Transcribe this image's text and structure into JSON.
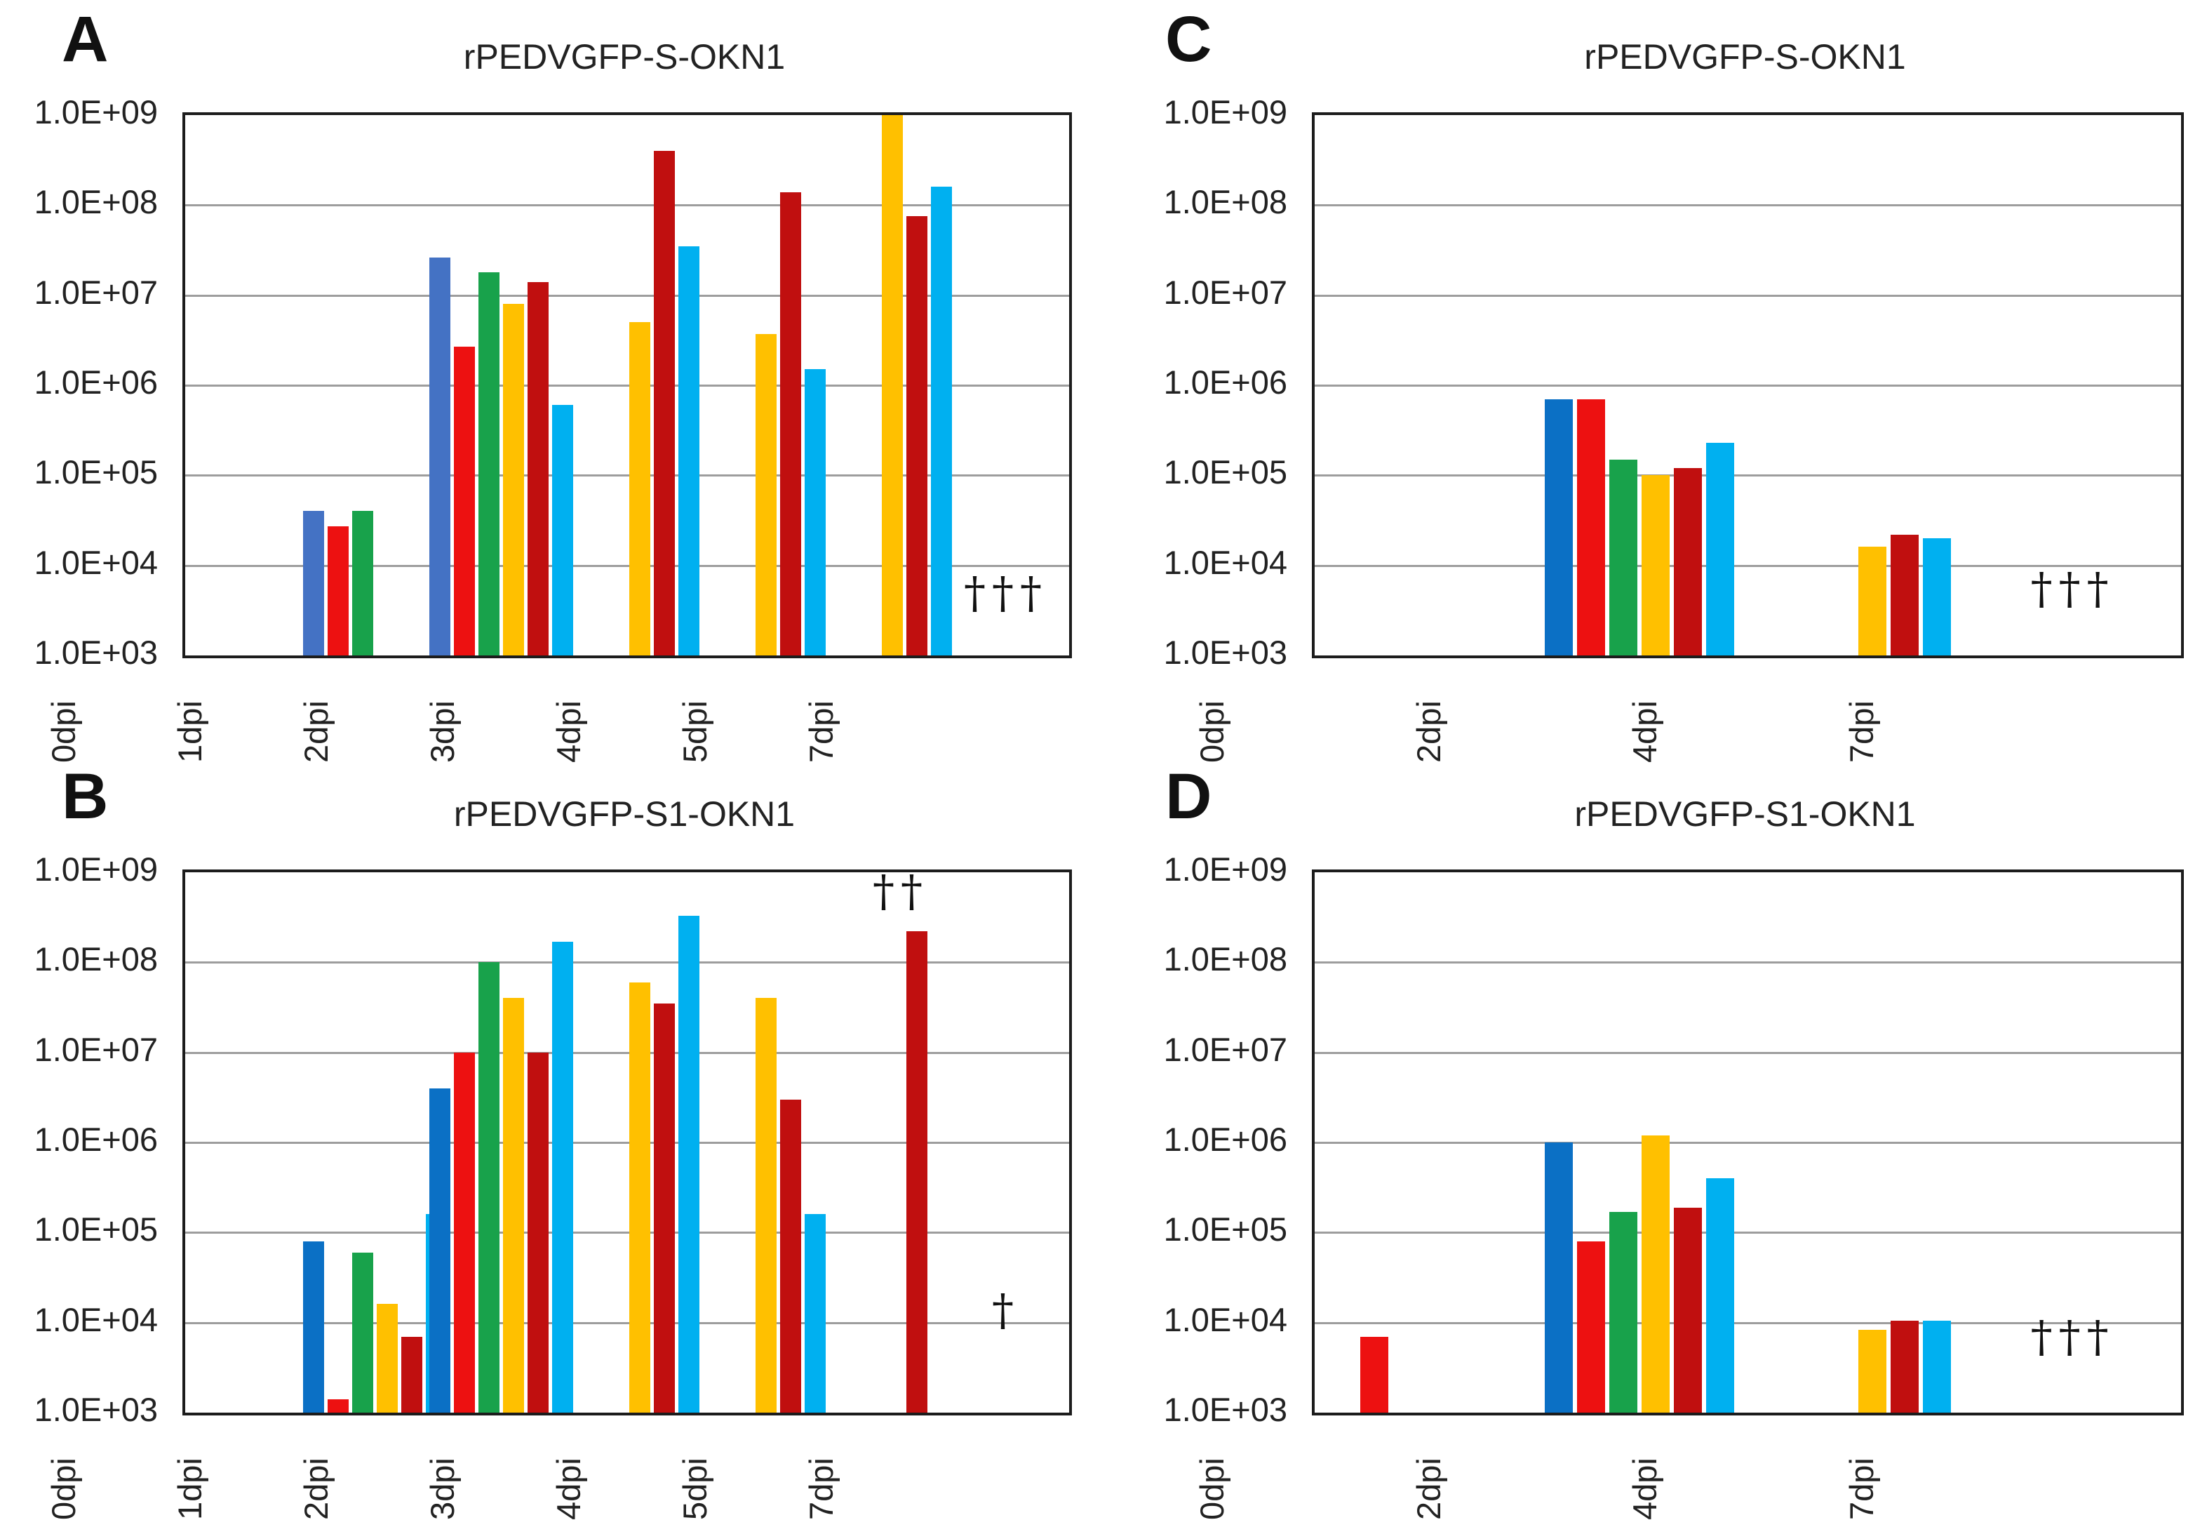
{
  "figure_background": "#ffffff",
  "grid_color": "#9d9d9d",
  "frame_color": "#1c1c1c",
  "chart_data": [
    {
      "id": "A",
      "letter": "A",
      "type": "bar",
      "title": "rPEDVGFP-S-OKN1",
      "y_scale": "log10",
      "ylim": [
        1000,
        1000000000
      ],
      "y_tick_labels": [
        "1.0E+09",
        "1.0E+08",
        "1.0E+07",
        "1.0E+06",
        "1.0E+05",
        "1.0E+04",
        "1.0E+03"
      ],
      "categories": [
        "0dpi",
        "1dpi",
        "2dpi",
        "3dpi",
        "4dpi",
        "5dpi",
        "7dpi"
      ],
      "series_colors": [
        "#4472C4",
        "#ED1111",
        "#18A24B",
        "#FFC000",
        "#C00F0F",
        "#00B0F0"
      ],
      "values": [
        [
          null,
          null,
          null,
          null,
          null,
          null
        ],
        [
          40000.0,
          27000.0,
          40000.0,
          null,
          null,
          null
        ],
        [
          26000000.0,
          2700000.0,
          18000000.0,
          8000000.0,
          14000000.0,
          600000.0
        ],
        [
          null,
          null,
          null,
          5000000.0,
          400000000.0,
          35000000.0
        ],
        [
          null,
          null,
          null,
          3700000.0,
          140000000.0,
          1500000.0
        ],
        [
          null,
          null,
          null,
          1000000000.0,
          75000000.0,
          160000000.0
        ],
        [
          null,
          null,
          null,
          null,
          null,
          null
        ]
      ],
      "annotations": [
        {
          "category_index": 6,
          "text": "†††",
          "log_level": 3.45,
          "dx": 0
        }
      ]
    },
    {
      "id": "B",
      "letter": "B",
      "type": "bar",
      "title": "rPEDVGFP-S1-OKN1",
      "y_scale": "log10",
      "ylim": [
        1000,
        1000000000
      ],
      "y_tick_labels": [
        "1.0E+09",
        "1.0E+08",
        "1.0E+07",
        "1.0E+06",
        "1.0E+05",
        "1.0E+04",
        "1.0E+03"
      ],
      "categories": [
        "0dpi",
        "1dpi",
        "2dpi",
        "3dpi",
        "4dpi",
        "5dpi",
        "7dpi"
      ],
      "series_colors": [
        "#0B70C5",
        "#ED1111",
        "#18A24B",
        "#FFC000",
        "#C00F0F",
        "#00B0F0"
      ],
      "values": [
        [
          null,
          null,
          null,
          null,
          null,
          null
        ],
        [
          80000.0,
          1400.0,
          60000.0,
          16000.0,
          7000.0,
          160000.0
        ],
        [
          4000000.0,
          10000000.0,
          100000000.0,
          40000000.0,
          10000000.0,
          170000000.0
        ],
        [
          null,
          null,
          null,
          60000000.0,
          35000000.0,
          330000000.0
        ],
        [
          null,
          null,
          null,
          40000000.0,
          3000000.0,
          160000.0
        ],
        [
          null,
          null,
          null,
          null,
          220000000.0,
          null
        ],
        [
          null,
          null,
          null,
          null,
          null,
          null
        ]
      ],
      "annotations": [
        {
          "category_index": 5,
          "text": "††",
          "log_level": 8.55,
          "dx": 30
        },
        {
          "category_index": 6,
          "text": "†",
          "log_level": 3.9,
          "dx": 0
        }
      ]
    },
    {
      "id": "C",
      "letter": "C",
      "type": "bar",
      "title": "rPEDVGFP-S-OKN1",
      "y_scale": "log10",
      "ylim": [
        1000,
        1000000000
      ],
      "y_tick_labels": [
        "1.0E+09",
        "1.0E+08",
        "1.0E+07",
        "1.0E+06",
        "1.0E+05",
        "1.0E+04",
        "1.0E+03"
      ],
      "categories": [
        "0dpi",
        "2dpi",
        "4dpi",
        "7dpi"
      ],
      "series_colors": [
        "#0B70C5",
        "#ED1111",
        "#18A24B",
        "#FFC000",
        "#C00F0F",
        "#00B0F0"
      ],
      "values": [
        [
          null,
          null,
          null,
          null,
          null,
          null
        ],
        [
          700000.0,
          700000.0,
          150000.0,
          100000.0,
          120000.0,
          230000.0
        ],
        [
          null,
          null,
          null,
          16000.0,
          22000.0,
          20000.0
        ],
        [
          null,
          null,
          null,
          null,
          null,
          null
        ]
      ],
      "annotations": [
        {
          "category_index": 3,
          "text": "†††",
          "log_level": 3.5,
          "dx": 0
        }
      ]
    },
    {
      "id": "D",
      "letter": "D",
      "type": "bar",
      "title": "rPEDVGFP-S1-OKN1",
      "y_scale": "log10",
      "ylim": [
        1000,
        1000000000
      ],
      "y_tick_labels": [
        "1.0E+09",
        "1.0E+08",
        "1.0E+07",
        "1.0E+06",
        "1.0E+05",
        "1.0E+04",
        "1.0E+03"
      ],
      "categories": [
        "0dpi",
        "2dpi",
        "4dpi",
        "7dpi"
      ],
      "series_colors": [
        "#0B70C5",
        "#ED1111",
        "#18A24B",
        "#FFC000",
        "#C00F0F",
        "#00B0F0"
      ],
      "values": [
        [
          null,
          7000.0,
          null,
          null,
          null,
          null
        ],
        [
          1000000.0,
          80000.0,
          170000.0,
          1200000.0,
          190000.0,
          400000.0
        ],
        [
          null,
          null,
          null,
          8300.0,
          10500.0,
          10500.0
        ],
        [
          null,
          null,
          null,
          null,
          null,
          null
        ]
      ],
      "annotations": [
        {
          "category_index": 3,
          "text": "†††",
          "log_level": 3.6,
          "dx": 0
        }
      ]
    }
  ]
}
